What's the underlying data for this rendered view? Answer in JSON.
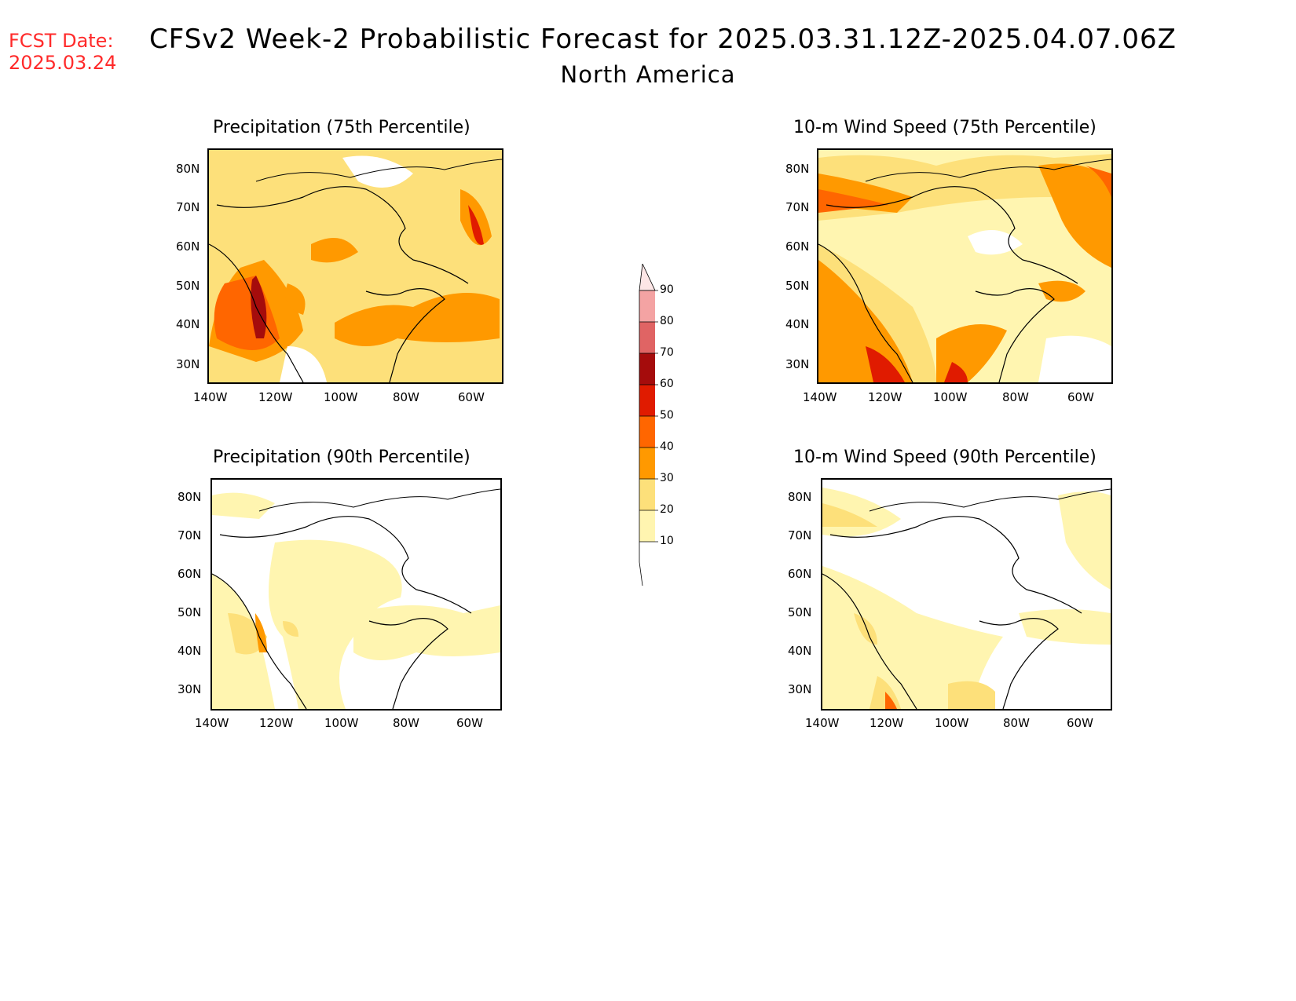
{
  "header": {
    "fcst_label": "FCST Date:",
    "fcst_date": "2025.03.24",
    "title": "CFSv2 Week-2 Probabilistic Forecast for 2025.03.31.12Z-2025.04.07.06Z",
    "subtitle": "North America"
  },
  "panels": [
    {
      "id": "p75",
      "title": "Precipitation (75th Percentile)"
    },
    {
      "id": "w75",
      "title": "10-m Wind Speed (75th Percentile)"
    },
    {
      "id": "p90",
      "title": "Precipitation (90th Percentile)"
    },
    {
      "id": "w90",
      "title": "10-m Wind Speed (90th Percentile)"
    }
  ],
  "axes": {
    "lat_labels": [
      "80N",
      "70N",
      "60N",
      "50N",
      "40N",
      "30N"
    ],
    "lon_labels": [
      "140W",
      "120W",
      "100W",
      "80W",
      "60W"
    ]
  },
  "legend": {
    "labels": [
      "90",
      "80",
      "70",
      "60",
      "50",
      "40",
      "30",
      "20",
      "10"
    ],
    "colors": [
      "#fde6e6",
      "#f4a3a3",
      "#e06464",
      "#a50c0c",
      "#e01b00",
      "#ff6600",
      "#ff9900",
      "#fde07a",
      "#fff5b0"
    ]
  }
}
